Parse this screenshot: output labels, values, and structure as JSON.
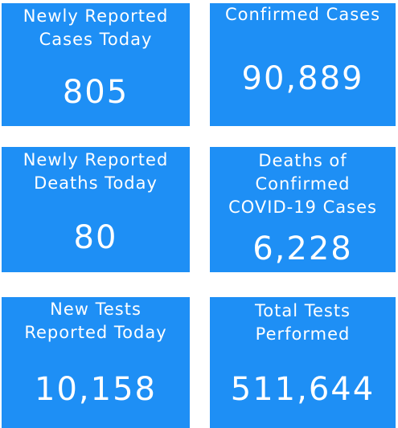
{
  "tiles": [
    {
      "label": [
        "Newly Reported",
        "Cases Today"
      ],
      "value": "805"
    },
    {
      "label": [
        "Confirmed Cases"
      ],
      "value": "90,889"
    },
    {
      "label": [
        "Newly Reported",
        "Deaths Today"
      ],
      "value": "80"
    },
    {
      "label": [
        "Deaths of",
        "Confirmed",
        "COVID-19 Cases"
      ],
      "value": "6,228"
    },
    {
      "label": [
        "New Tests",
        "Reported Today"
      ],
      "value": "10,158"
    },
    {
      "label": [
        "Total Tests",
        "Performed"
      ],
      "value": "511,644"
    }
  ]
}
